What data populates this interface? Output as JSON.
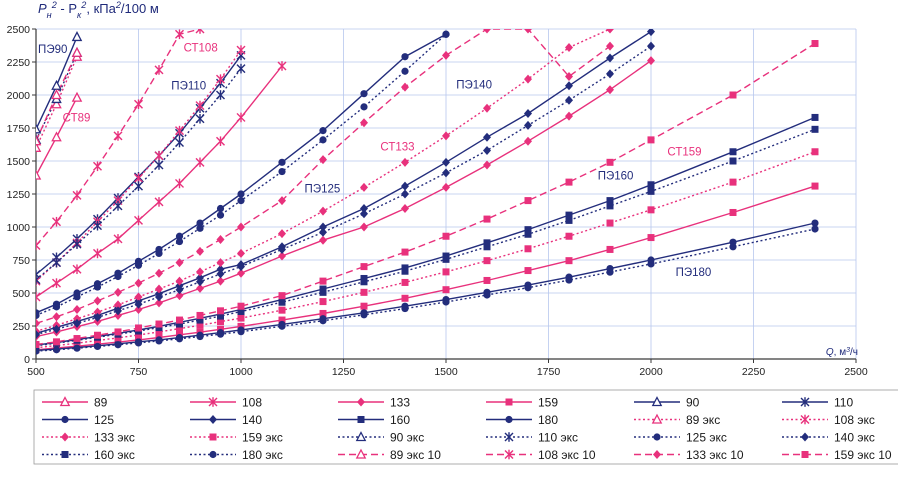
{
  "chart_data": {
    "type": "line",
    "ylabel_parts": [
      "P",
      "н",
      "2",
      " - ",
      "P",
      "к",
      "2",
      ", кПа",
      "2",
      "/100 м"
    ],
    "xlabel_parts": [
      "Q",
      ", м",
      "3",
      "/ч"
    ],
    "xlim": [
      500,
      2500
    ],
    "ylim": [
      0,
      2500
    ],
    "x_ticks": [
      "500",
      "750",
      "1000",
      "1250",
      "1500",
      "1750",
      "2000",
      "2250",
      "2500"
    ],
    "y_ticks": [
      "0",
      "250",
      "500",
      "750",
      "1000",
      "1250",
      "1500",
      "1750",
      "2000",
      "2250",
      "2500"
    ],
    "colors": {
      "pink": "#e8317c",
      "navy": "#232d7c",
      "grid": "#b7c7ee",
      "axis": "#3a3a3a"
    },
    "annotations": [
      {
        "text": "ПЭ90",
        "x": 505,
        "y": 2320,
        "color": "#232d7c"
      },
      {
        "text": "СТ89",
        "x": 565,
        "y": 1800,
        "color": "#e8317c"
      },
      {
        "text": "СТ108",
        "x": 860,
        "y": 2330,
        "color": "#e8317c"
      },
      {
        "text": "ПЭ110",
        "x": 830,
        "y": 2040,
        "color": "#232d7c"
      },
      {
        "text": "ПЭ125",
        "x": 1155,
        "y": 1260,
        "color": "#232d7c"
      },
      {
        "text": "СТ133",
        "x": 1340,
        "y": 1580,
        "color": "#e8317c"
      },
      {
        "text": "ПЭ140",
        "x": 1525,
        "y": 2050,
        "color": "#232d7c"
      },
      {
        "text": "СТ159",
        "x": 2040,
        "y": 1540,
        "color": "#e8317c"
      },
      {
        "text": "ПЭ160",
        "x": 1870,
        "y": 1360,
        "color": "#232d7c"
      },
      {
        "text": "ПЭ180",
        "x": 2060,
        "y": 630,
        "color": "#232d7c"
      }
    ],
    "series": [
      {
        "name": "89",
        "color": "#e8317c",
        "dash": "solid",
        "marker": "tri-open",
        "x": [
          500,
          550,
          600
        ],
        "y": [
          1390,
          1680,
          1980
        ]
      },
      {
        "name": "108",
        "color": "#e8317c",
        "dash": "solid",
        "marker": "star",
        "x": [
          500,
          550,
          600,
          650,
          700,
          750,
          800,
          850,
          900,
          950,
          1000,
          1100
        ],
        "y": [
          470,
          575,
          680,
          800,
          910,
          1050,
          1190,
          1330,
          1490,
          1650,
          1830,
          2220
        ]
      },
      {
        "name": "133",
        "color": "#e8317c",
        "dash": "solid",
        "marker": "diamond",
        "x": [
          500,
          550,
          600,
          650,
          700,
          750,
          800,
          850,
          900,
          950,
          1000,
          1100,
          1200,
          1300,
          1400,
          1500,
          1600,
          1700,
          1800,
          1900,
          2000
        ],
        "y": [
          170,
          205,
          245,
          285,
          330,
          375,
          425,
          480,
          535,
          590,
          650,
          780,
          900,
          1000,
          1140,
          1300,
          1470,
          1650,
          1840,
          2040,
          2260
        ]
      },
      {
        "name": "159",
        "color": "#e8317c",
        "dash": "solid",
        "marker": "square",
        "x": [
          500,
          550,
          600,
          650,
          700,
          750,
          800,
          850,
          900,
          950,
          1000,
          1100,
          1200,
          1300,
          1400,
          1500,
          1600,
          1700,
          1800,
          1900,
          2000,
          2200,
          2400
        ],
        "y": [
          70,
          83,
          97,
          112,
          128,
          145,
          163,
          183,
          203,
          225,
          247,
          295,
          345,
          400,
          460,
          525,
          595,
          670,
          745,
          830,
          920,
          1110,
          1310
        ]
      },
      {
        "name": "90",
        "color": "#232d7c",
        "dash": "solid",
        "marker": "tri-open",
        "x": [
          500,
          550,
          600
        ],
        "y": [
          1740,
          2070,
          2440
        ]
      },
      {
        "name": "110",
        "color": "#232d7c",
        "dash": "solid",
        "marker": "star",
        "x": [
          500,
          550,
          600,
          650,
          700,
          750,
          800,
          850,
          900,
          950,
          1000
        ],
        "y": [
          640,
          770,
          910,
          1060,
          1220,
          1380,
          1540,
          1710,
          1900,
          2090,
          2300
        ]
      },
      {
        "name": "125",
        "color": "#232d7c",
        "dash": "solid",
        "marker": "circle",
        "x": [
          500,
          550,
          600,
          650,
          700,
          750,
          800,
          850,
          900,
          950,
          1000,
          1100,
          1200,
          1300,
          1400,
          1500
        ],
        "y": [
          350,
          415,
          500,
          570,
          650,
          740,
          830,
          930,
          1030,
          1140,
          1250,
          1490,
          1730,
          2010,
          2290,
          2460
        ]
      },
      {
        "name": "140",
        "color": "#232d7c",
        "dash": "solid",
        "marker": "diamond",
        "x": [
          500,
          550,
          600,
          650,
          700,
          750,
          800,
          850,
          900,
          950,
          1000,
          1100,
          1200,
          1300,
          1400,
          1500,
          1600,
          1700,
          1800,
          1900,
          2000
        ],
        "y": [
          195,
          240,
          285,
          330,
          385,
          440,
          495,
          555,
          615,
          680,
          715,
          850,
          1000,
          1140,
          1310,
          1490,
          1680,
          1860,
          2070,
          2280,
          2480
        ]
      },
      {
        "name": "160",
        "color": "#232d7c",
        "dash": "solid",
        "marker": "square",
        "x": [
          500,
          550,
          600,
          650,
          700,
          750,
          800,
          850,
          900,
          950,
          1000,
          1100,
          1200,
          1300,
          1400,
          1500,
          1600,
          1700,
          1800,
          1900,
          2000,
          2200,
          2400
        ],
        "y": [
          105,
          125,
          148,
          170,
          195,
          220,
          248,
          278,
          308,
          340,
          375,
          450,
          530,
          610,
          690,
          780,
          880,
          980,
          1090,
          1200,
          1320,
          1570,
          1830
        ]
      },
      {
        "name": "180",
        "color": "#232d7c",
        "dash": "solid",
        "marker": "circle",
        "x": [
          500,
          550,
          600,
          650,
          700,
          750,
          800,
          850,
          900,
          950,
          1000,
          1100,
          1200,
          1300,
          1400,
          1500,
          1600,
          1700,
          1800,
          1900,
          2000,
          2200,
          2400
        ],
        "y": [
          65,
          75,
          87,
          100,
          115,
          130,
          145,
          162,
          180,
          200,
          220,
          262,
          305,
          350,
          400,
          450,
          505,
          560,
          620,
          685,
          750,
          885,
          1030
        ]
      },
      {
        "name": "89 экс",
        "color": "#e8317c",
        "dash": "dot",
        "marker": "tri-open",
        "x": [
          500,
          550,
          600
        ],
        "y": [
          1600,
          1930,
          2290
        ]
      },
      {
        "name": "108 экс",
        "color": "#e8317c",
        "dash": "dot",
        "marker": "star",
        "x": [
          500,
          550,
          600,
          650,
          700,
          750,
          800,
          850,
          900,
          950,
          1000
        ],
        "y": [
          590,
          730,
          880,
          1040,
          1200,
          1370,
          1540,
          1730,
          1920,
          2120,
          2340
        ]
      },
      {
        "name": "133 экс",
        "color": "#e8317c",
        "dash": "dot",
        "marker": "diamond",
        "x": [
          500,
          550,
          600,
          650,
          700,
          750,
          800,
          850,
          900,
          950,
          1000,
          1100,
          1200,
          1300,
          1400,
          1500,
          1600,
          1700,
          1800,
          1900
        ],
        "y": [
          210,
          255,
          305,
          355,
          410,
          470,
          530,
          590,
          660,
          730,
          800,
          950,
          1120,
          1300,
          1490,
          1690,
          1900,
          2120,
          2360,
          2500
        ]
      },
      {
        "name": "159 экс",
        "color": "#e8317c",
        "dash": "dot",
        "marker": "square",
        "x": [
          500,
          550,
          600,
          650,
          700,
          750,
          800,
          850,
          900,
          950,
          1000,
          1100,
          1200,
          1300,
          1400,
          1500,
          1600,
          1700,
          1800,
          1900,
          2000,
          2200,
          2400
        ],
        "y": [
          85,
          102,
          120,
          140,
          160,
          182,
          205,
          230,
          255,
          283,
          310,
          370,
          435,
          505,
          580,
          660,
          745,
          835,
          930,
          1030,
          1130,
          1340,
          1570
        ]
      },
      {
        "name": "90 экс",
        "color": "#232d7c",
        "dash": "dot",
        "marker": "tri-open",
        "x": [
          500,
          550,
          600
        ],
        "y": [
          1660,
          1970,
          2320
        ]
      },
      {
        "name": "110 экс",
        "color": "#232d7c",
        "dash": "dot",
        "marker": "star",
        "x": [
          500,
          550,
          600,
          650,
          700,
          750,
          800,
          850,
          900,
          950,
          1000
        ],
        "y": [
          600,
          730,
          870,
          1010,
          1160,
          1310,
          1470,
          1640,
          1820,
          2000,
          2200
        ]
      },
      {
        "name": "125 экс",
        "color": "#232d7c",
        "dash": "dot",
        "marker": "circle",
        "x": [
          500,
          550,
          600,
          650,
          700,
          750,
          800,
          850,
          900,
          950,
          1000,
          1100,
          1200,
          1300,
          1400,
          1500
        ],
        "y": [
          330,
          395,
          470,
          545,
          625,
          710,
          800,
          890,
          990,
          1090,
          1200,
          1420,
          1660,
          1910,
          2180,
          2460
        ]
      },
      {
        "name": "140 экс",
        "color": "#232d7c",
        "dash": "dot",
        "marker": "diamond",
        "x": [
          500,
          550,
          600,
          650,
          700,
          750,
          800,
          850,
          900,
          950,
          1000,
          1100,
          1200,
          1300,
          1400,
          1500,
          1600,
          1700,
          1800,
          1900,
          2000
        ],
        "y": [
          185,
          225,
          270,
          315,
          365,
          415,
          470,
          525,
          585,
          645,
          700,
          830,
          960,
          1100,
          1250,
          1410,
          1580,
          1770,
          1960,
          2160,
          2370
        ]
      },
      {
        "name": "160 экс",
        "color": "#232d7c",
        "dash": "dot",
        "marker": "square",
        "x": [
          500,
          550,
          600,
          650,
          700,
          750,
          800,
          850,
          900,
          950,
          1000,
          1100,
          1200,
          1300,
          1400,
          1500,
          1600,
          1700,
          1800,
          1900,
          2000,
          2200,
          2400
        ],
        "y": [
          100,
          120,
          142,
          165,
          188,
          212,
          238,
          265,
          295,
          325,
          360,
          430,
          505,
          585,
          665,
          755,
          850,
          945,
          1050,
          1160,
          1270,
          1500,
          1740
        ]
      },
      {
        "name": "180 экс",
        "color": "#232d7c",
        "dash": "dot",
        "marker": "circle",
        "x": [
          500,
          550,
          600,
          650,
          700,
          750,
          800,
          850,
          900,
          950,
          1000,
          1100,
          1200,
          1300,
          1400,
          1500,
          1600,
          1700,
          1800,
          1900,
          2000,
          2200,
          2400
        ],
        "y": [
          60,
          70,
          82,
          95,
          108,
          122,
          137,
          153,
          170,
          188,
          207,
          248,
          290,
          335,
          382,
          432,
          485,
          540,
          598,
          658,
          720,
          850,
          985
        ]
      },
      {
        "name": "89 экс 10",
        "color": "#e8317c",
        "dash": "dash",
        "marker": "tri-open",
        "x": [
          500,
          550,
          600
        ],
        "y": [
          1650,
          2000,
          2320
        ]
      },
      {
        "name": "108 экс 10",
        "color": "#e8317c",
        "dash": "dash",
        "marker": "star",
        "x": [
          500,
          550,
          600,
          650,
          700,
          750,
          800,
          850,
          900
        ],
        "y": [
          860,
          1040,
          1240,
          1460,
          1690,
          1930,
          2190,
          2460,
          2500
        ]
      },
      {
        "name": "133 экс 10",
        "color": "#e8317c",
        "dash": "dash",
        "marker": "diamond",
        "x": [
          500,
          550,
          600,
          650,
          700,
          750,
          800,
          850,
          900,
          950,
          1000,
          1100,
          1200,
          1300,
          1400,
          1500,
          1600,
          1700,
          1800,
          1900
        ],
        "y": [
          270,
          320,
          375,
          440,
          505,
          575,
          650,
          730,
          815,
          905,
          1000,
          1200,
          1510,
          1790,
          2060,
          2300,
          2500,
          2500,
          2140,
          2370
        ]
      },
      {
        "name": "159 экс 10",
        "color": "#e8317c",
        "dash": "dash",
        "marker": "square",
        "x": [
          500,
          550,
          600,
          650,
          700,
          750,
          800,
          850,
          900,
          950,
          1000,
          1100,
          1200,
          1300,
          1400,
          1500,
          1600,
          1700,
          1800,
          1900,
          2000,
          2200,
          2400
        ],
        "y": [
          110,
          130,
          155,
          180,
          205,
          235,
          265,
          295,
          330,
          365,
          400,
          480,
          590,
          700,
          810,
          930,
          1060,
          1200,
          1340,
          1490,
          1660,
          2000,
          2390
        ]
      }
    ]
  }
}
